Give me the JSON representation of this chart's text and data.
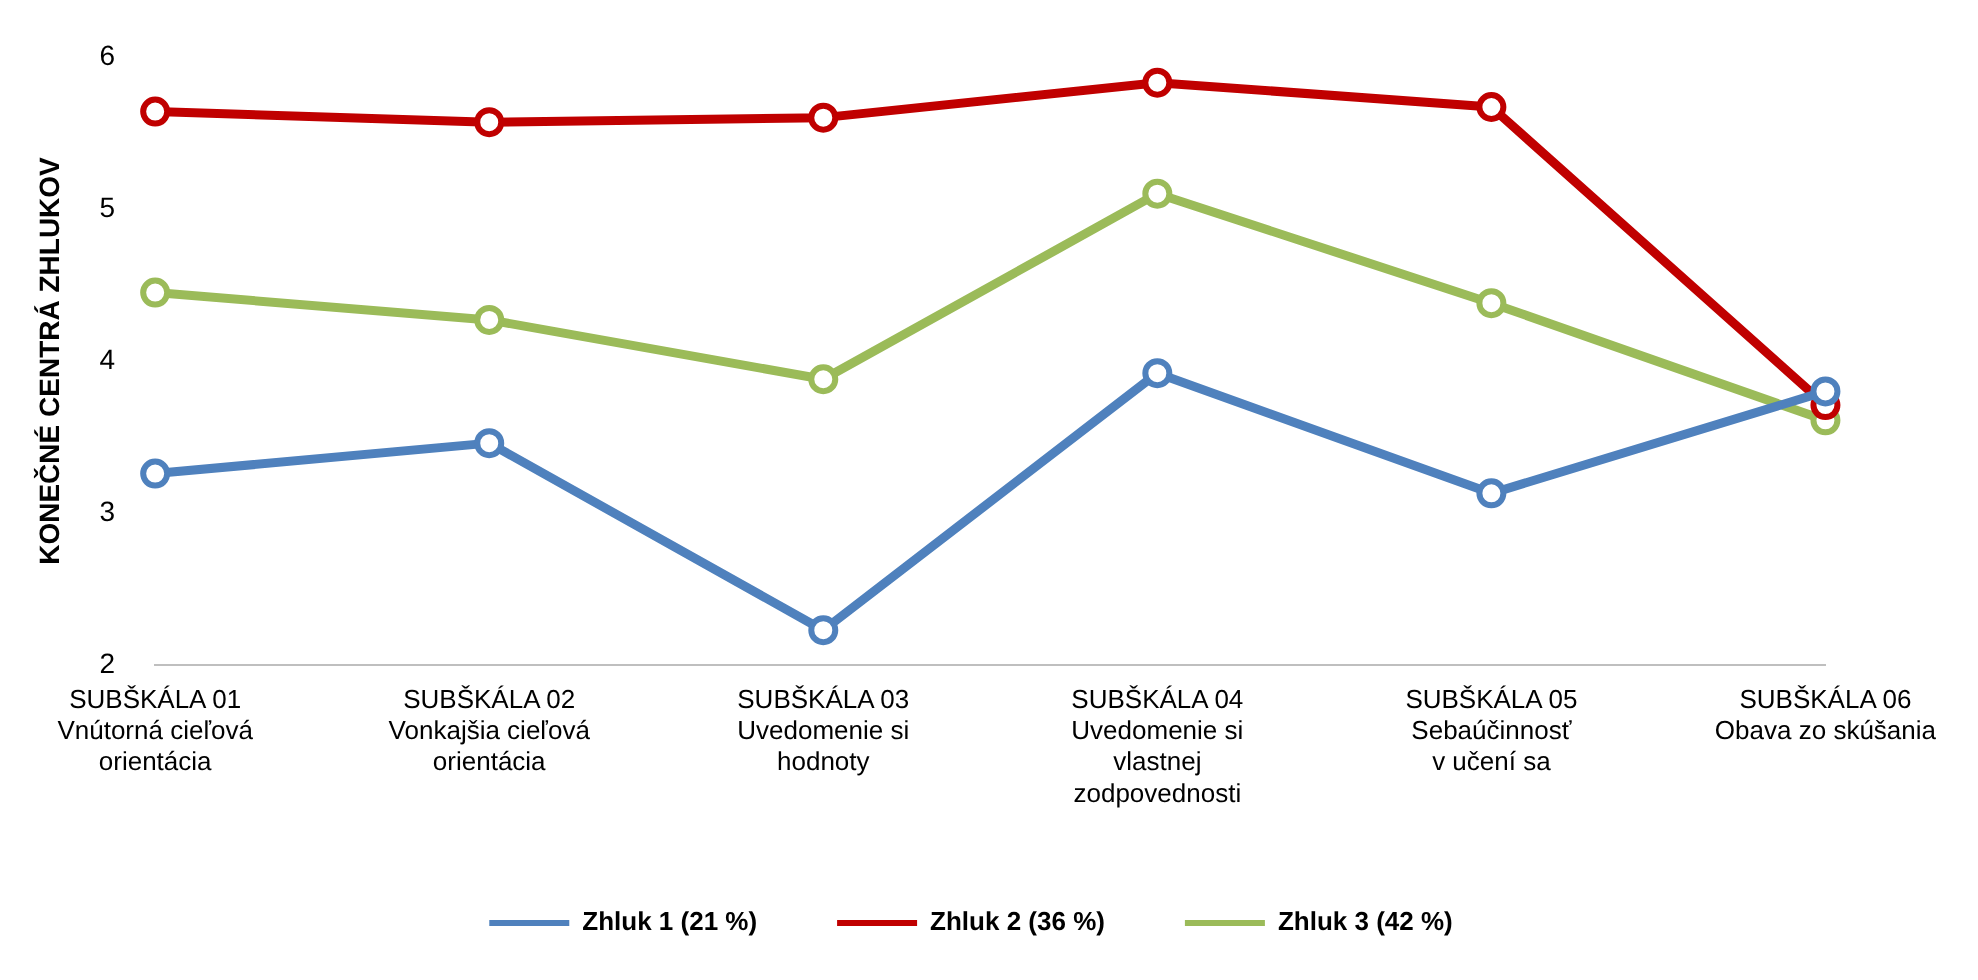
{
  "chart_data": {
    "type": "line",
    "ylabel": "KONEČNÉ CENTRÁ ZHLUKOV",
    "categories": [
      "SUBŠKÁLA 01\nVnútorná cieľová\norientácia",
      "SUBŠKÁLA 02\nVonkajšia cieľová\norientácia",
      "SUBŠKÁLA 03\nUvedomenie si\nhodnoty",
      "SUBŠKÁLA 04\nUvedomenie si\nvlastnej\nzodpovednosti",
      "SUBŠKÁLA 05\nSebaúčinnosť\nv učení sa",
      "SUBŠKÁLA 06\nObava zo skúšania"
    ],
    "series": [
      {
        "name": "Zhluk 1 (21 %)",
        "color": "#4f81bd",
        "values": [
          3.26,
          3.46,
          2.23,
          3.92,
          3.13,
          3.8
        ]
      },
      {
        "name": "Zhluk 2 (36 %)",
        "color": "#c00000",
        "values": [
          5.64,
          5.57,
          5.6,
          5.83,
          5.67,
          3.71
        ]
      },
      {
        "name": "Zhluk 3 (42 %)",
        "color": "#9bbb59",
        "values": [
          4.45,
          4.27,
          3.88,
          5.1,
          4.38,
          3.61
        ]
      }
    ],
    "ylim": [
      2,
      6
    ],
    "yticks": [
      2,
      3,
      4,
      5,
      6
    ],
    "grid": false,
    "legend": "bottom",
    "marker": "circle",
    "line_style": "solid"
  }
}
